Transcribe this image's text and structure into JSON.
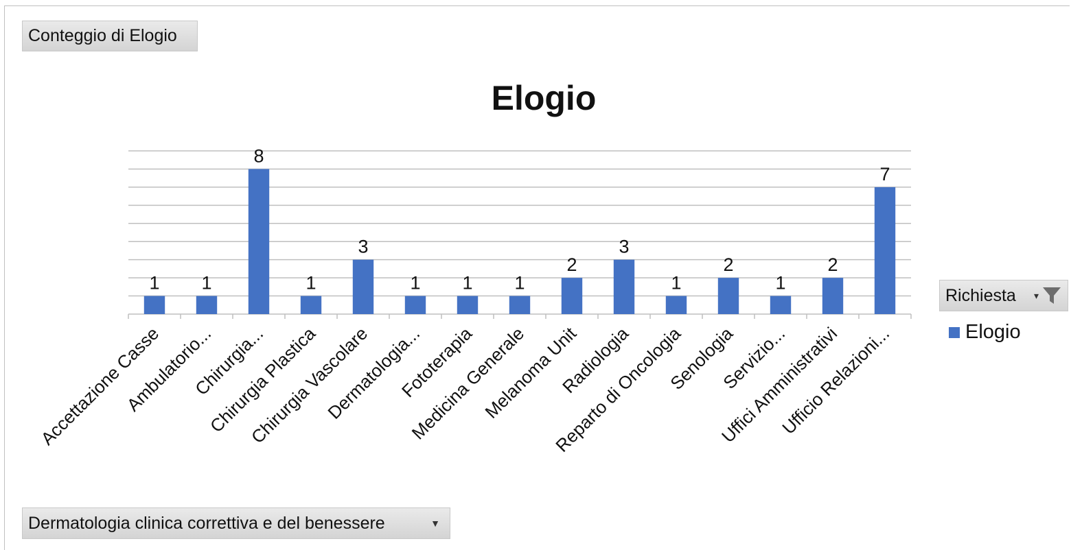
{
  "pivot": {
    "value_field": "Conteggio di Elogio",
    "legend_field": "Richiesta",
    "axis_field": "Dermatologia clinica correttiva e del benessere"
  },
  "icons": {
    "legend_filter": "filter-icon",
    "dropdown": "chevron-down-icon"
  },
  "legend": {
    "entries": [
      "Elogio"
    ]
  },
  "colors": {
    "bar": "#4472C4",
    "grid": "#bfbfbf",
    "axis": "#bfbfbf"
  },
  "chart_data": {
    "type": "bar",
    "title": "Elogio",
    "xlabel": "",
    "ylabel": "",
    "categories": [
      "Accettazione Casse",
      "Ambulatorio...",
      "Chirurgia...",
      "Chirurgia Plastica",
      "Chirurgia Vascolare",
      "Dermatologia...",
      "Fototerapia",
      "Medicina Generale",
      "Melanoma Unit",
      "Radiologia",
      "Reparto di Oncologia",
      "Senologia",
      "Servizio...",
      "Uffici Amministrativi",
      "Ufficio Relazioni..."
    ],
    "series": [
      {
        "name": "Elogio",
        "values": [
          1,
          1,
          8,
          1,
          3,
          1,
          1,
          1,
          2,
          3,
          1,
          2,
          1,
          2,
          7
        ]
      }
    ],
    "ylim": [
      0,
      9
    ],
    "grid": true,
    "y_tick_labels_shown": false,
    "data_labels": true,
    "legend_position": "right"
  }
}
